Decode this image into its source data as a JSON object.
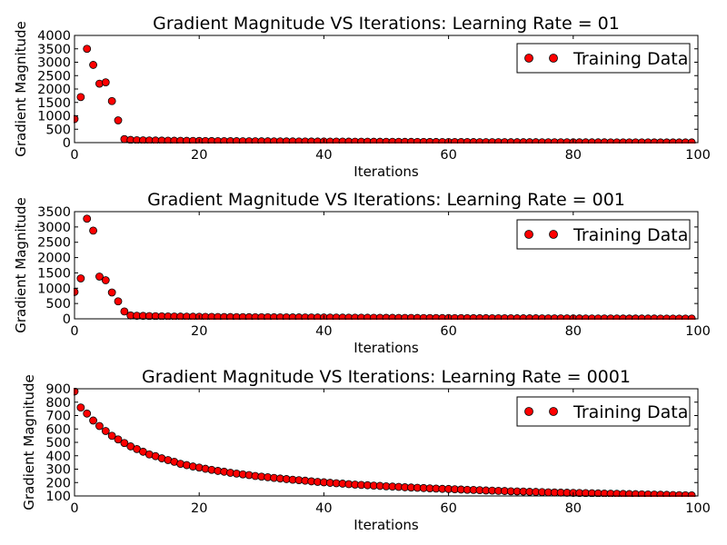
{
  "colors": {
    "marker_fill": "#ff0000",
    "marker_edge": "#000000",
    "axes": "#000000",
    "background": "#ffffff"
  },
  "chart_data": [
    {
      "type": "scatter",
      "title": "Gradient Magnitude VS Iterations: Learning Rate = 01",
      "xlabel": "Iterations",
      "ylabel": "Gradient Magnitude",
      "xlim": [
        0,
        100
      ],
      "ylim": [
        0,
        4000
      ],
      "xticks": [
        0,
        20,
        40,
        60,
        80,
        100
      ],
      "yticks": [
        0,
        500,
        1000,
        1500,
        2000,
        2500,
        3000,
        3500,
        4000
      ],
      "legend": {
        "label": "Training Data",
        "placement": "top-right"
      },
      "grid": false,
      "series": [
        {
          "name": "Training Data",
          "x": [
            0,
            1,
            2,
            3,
            4,
            5,
            6,
            7,
            8,
            9,
            10,
            11,
            12,
            13,
            14,
            15,
            16,
            17,
            18,
            19,
            20,
            21,
            22,
            23,
            24,
            25,
            26,
            27,
            28,
            29,
            30,
            31,
            32,
            33,
            34,
            35,
            36,
            37,
            38,
            39,
            40,
            41,
            42,
            43,
            44,
            45,
            46,
            47,
            48,
            49,
            50,
            51,
            52,
            53,
            54,
            55,
            56,
            57,
            58,
            59,
            60,
            61,
            62,
            63,
            64,
            65,
            66,
            67,
            68,
            69,
            70,
            71,
            72,
            73,
            74,
            75,
            76,
            77,
            78,
            79,
            80,
            81,
            82,
            83,
            84,
            85,
            86,
            87,
            88,
            89,
            90,
            91,
            92,
            93,
            94,
            95,
            96,
            97,
            98,
            99
          ],
          "y": [
            880,
            1700,
            3500,
            2900,
            2200,
            2250,
            1550,
            830,
            130,
            100,
            90,
            85,
            80,
            78,
            75,
            72,
            70,
            68,
            66,
            64,
            62,
            60,
            58,
            56,
            55,
            54,
            53,
            52,
            51,
            50,
            49,
            48,
            47,
            46,
            45,
            44,
            43,
            42,
            41,
            40,
            40,
            39,
            38,
            37,
            36,
            35,
            34,
            33,
            32,
            31,
            30,
            30,
            29,
            28,
            27,
            26,
            25,
            24,
            23,
            22,
            22,
            21,
            20,
            20,
            19,
            18,
            18,
            17,
            17,
            16,
            15,
            15,
            15,
            14,
            14,
            13,
            13,
            12,
            12,
            12,
            11,
            11,
            10,
            10,
            10,
            10,
            9,
            9,
            9,
            8,
            8,
            8,
            8,
            7,
            7,
            7,
            7,
            6,
            6,
            6
          ]
        }
      ]
    },
    {
      "type": "scatter",
      "title": "Gradient Magnitude VS Iterations: Learning Rate = 001",
      "xlabel": "Iterations",
      "ylabel": "Gradient Magnitude",
      "xlim": [
        0,
        100
      ],
      "ylim": [
        0,
        3500
      ],
      "xticks": [
        0,
        20,
        40,
        60,
        80,
        100
      ],
      "yticks": [
        0,
        500,
        1000,
        1500,
        2000,
        2500,
        3000,
        3500
      ],
      "legend": {
        "label": "Training Data",
        "placement": "top-right"
      },
      "grid": false,
      "series": [
        {
          "name": "Training Data",
          "x": [
            0,
            1,
            2,
            3,
            4,
            5,
            6,
            7,
            8,
            9,
            10,
            11,
            12,
            13,
            14,
            15,
            16,
            17,
            18,
            19,
            20,
            21,
            22,
            23,
            24,
            25,
            26,
            27,
            28,
            29,
            30,
            31,
            32,
            33,
            34,
            35,
            36,
            37,
            38,
            39,
            40,
            41,
            42,
            43,
            44,
            45,
            46,
            47,
            48,
            49,
            50,
            51,
            52,
            53,
            54,
            55,
            56,
            57,
            58,
            59,
            60,
            61,
            62,
            63,
            64,
            65,
            66,
            67,
            68,
            69,
            70,
            71,
            72,
            73,
            74,
            75,
            76,
            77,
            78,
            79,
            80,
            81,
            82,
            83,
            84,
            85,
            86,
            87,
            88,
            89,
            90,
            91,
            92,
            93,
            94,
            95,
            96,
            97,
            98,
            99
          ],
          "y": [
            880,
            1320,
            3270,
            2880,
            1380,
            1260,
            860,
            570,
            240,
            110,
            100,
            95,
            90,
            86,
            82,
            78,
            75,
            72,
            70,
            68,
            66,
            64,
            62,
            60,
            58,
            57,
            56,
            55,
            54,
            53,
            52,
            51,
            50,
            49,
            48,
            47,
            46,
            45,
            44,
            43,
            42,
            41,
            40,
            39,
            38,
            37,
            36,
            35,
            34,
            33,
            32,
            31,
            30,
            30,
            29,
            28,
            27,
            26,
            25,
            24,
            24,
            23,
            22,
            22,
            21,
            20,
            20,
            19,
            19,
            18,
            18,
            17,
            17,
            16,
            16,
            15,
            15,
            14,
            14,
            14,
            13,
            13,
            12,
            12,
            12,
            11,
            11,
            11,
            10,
            10,
            10,
            9,
            9,
            9,
            8,
            8,
            8,
            8,
            7,
            7
          ]
        }
      ]
    },
    {
      "type": "scatter",
      "title": "Gradient Magnitude VS Iterations: Learning Rate = 0001",
      "xlabel": "Iterations",
      "ylabel": "Gradient Magnitude",
      "xlim": [
        0,
        100
      ],
      "ylim": [
        100,
        900
      ],
      "xticks": [
        0,
        20,
        40,
        60,
        80,
        100
      ],
      "yticks": [
        100,
        200,
        300,
        400,
        500,
        600,
        700,
        800,
        900
      ],
      "legend": {
        "label": "Training Data",
        "placement": "top-right"
      },
      "grid": false,
      "series": [
        {
          "name": "Training Data",
          "x": [
            0,
            1,
            2,
            3,
            4,
            5,
            6,
            7,
            8,
            9,
            10,
            11,
            12,
            13,
            14,
            15,
            16,
            17,
            18,
            19,
            20,
            21,
            22,
            23,
            24,
            25,
            26,
            27,
            28,
            29,
            30,
            31,
            32,
            33,
            34,
            35,
            36,
            37,
            38,
            39,
            40,
            41,
            42,
            43,
            44,
            45,
            46,
            47,
            48,
            49,
            50,
            51,
            52,
            53,
            54,
            55,
            56,
            57,
            58,
            59,
            60,
            61,
            62,
            63,
            64,
            65,
            66,
            67,
            68,
            69,
            70,
            71,
            72,
            73,
            74,
            75,
            76,
            77,
            78,
            79,
            80,
            81,
            82,
            83,
            84,
            85,
            86,
            87,
            88,
            89,
            90,
            91,
            92,
            93,
            94,
            95,
            96,
            97,
            98,
            99
          ],
          "y": [
            880,
            760,
            715,
            663,
            622,
            585,
            549,
            522,
            495,
            470,
            450,
            430,
            410,
            397,
            381,
            368,
            355,
            340,
            330,
            320,
            312,
            303,
            295,
            287,
            281,
            273,
            267,
            261,
            256,
            249,
            244,
            240,
            235,
            230,
            226,
            221,
            218,
            214,
            209,
            205,
            202,
            198,
            195,
            192,
            188,
            185,
            182,
            180,
            177,
            175,
            172,
            170,
            168,
            165,
            163,
            161,
            159,
            157,
            155,
            153,
            152,
            150,
            148,
            146,
            145,
            143,
            141,
            140,
            138,
            137,
            135,
            134,
            133,
            131,
            130,
            129,
            127,
            126,
            125,
            124,
            123,
            122,
            121,
            120,
            119,
            118,
            117,
            116,
            115,
            114,
            113,
            112,
            111,
            110,
            109,
            108,
            107,
            106,
            105,
            104
          ]
        }
      ]
    }
  ]
}
